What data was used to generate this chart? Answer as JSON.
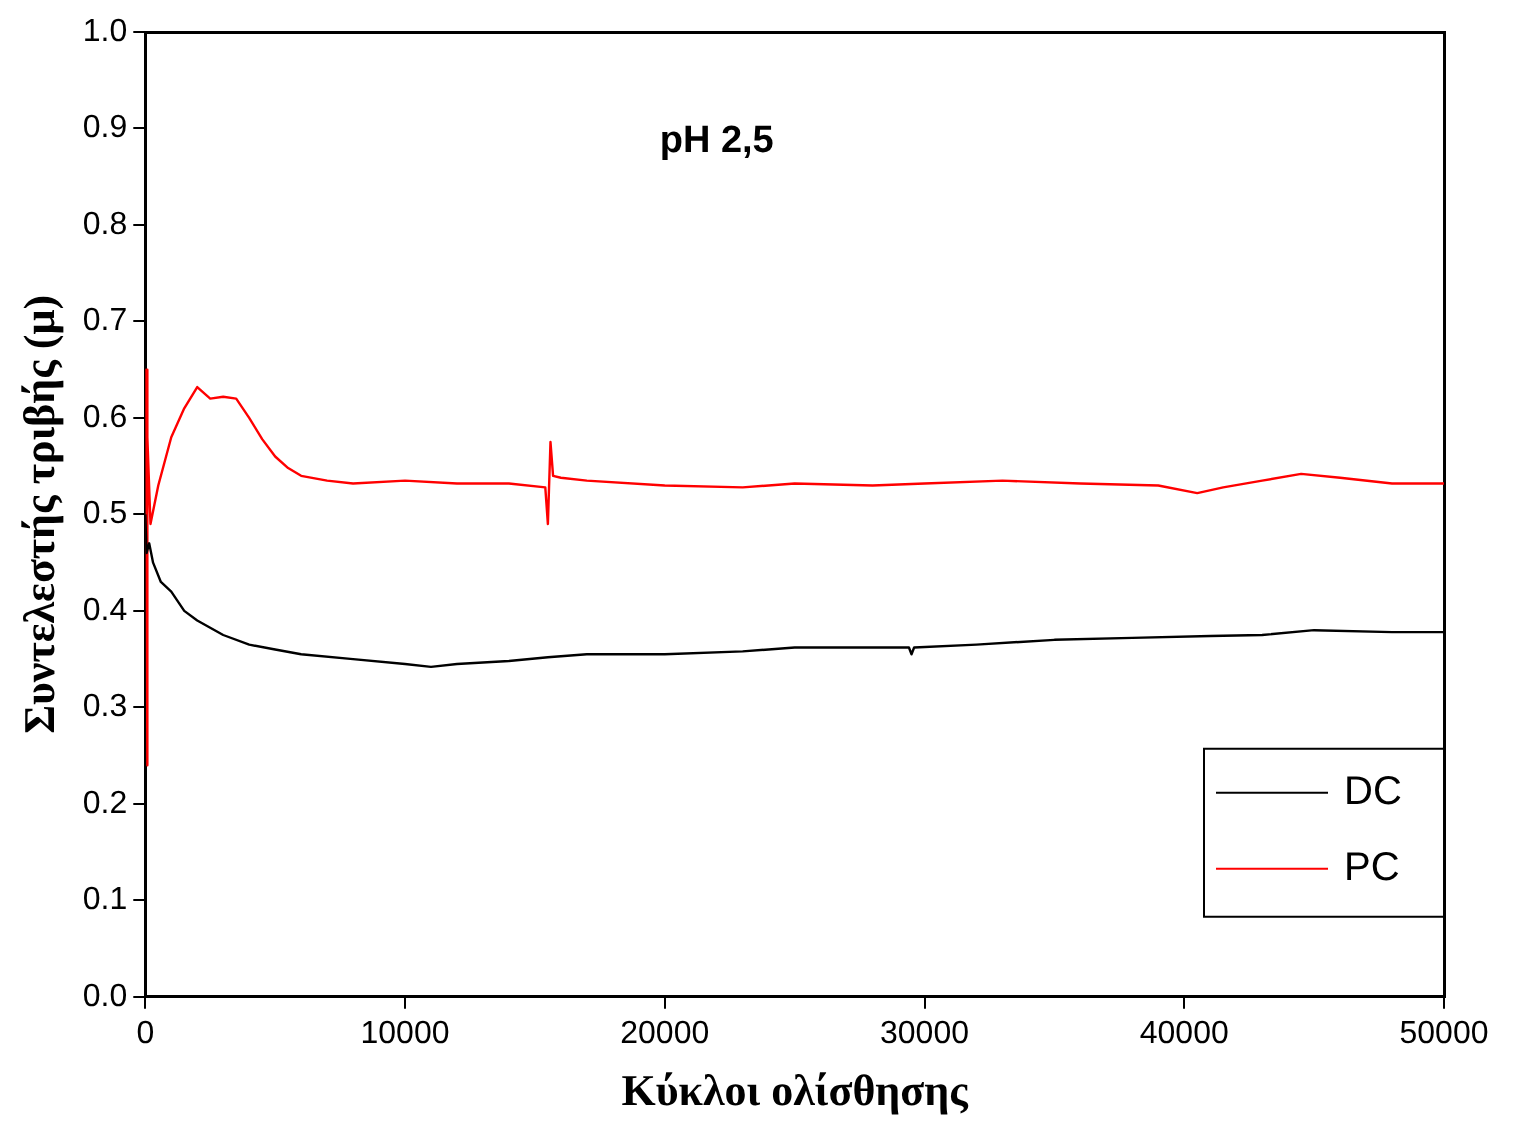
{
  "chart_data": {
    "type": "line",
    "title": "pH 2,5",
    "xlabel": "Κύκλοι ολίσθησης",
    "ylabel": "Συντελεστής τριβής (μ)",
    "xlim": [
      0,
      50000
    ],
    "ylim": [
      0,
      1
    ],
    "xticks": [
      0,
      10000,
      20000,
      30000,
      40000,
      50000
    ],
    "yticks": [
      {
        "value": 0,
        "label": "0.0"
      },
      0.1,
      0.2,
      0.3,
      0.4,
      0.5,
      0.6,
      0.7,
      0.8,
      0.9,
      {
        "value": 1,
        "label": "1.0"
      }
    ],
    "grid": false,
    "legend": "bottom right",
    "marker": "none",
    "line_style": "solid",
    "series": [
      {
        "name": "DC",
        "color": "#000000",
        "x": [
          0,
          50,
          150,
          300,
          600,
          1000,
          1500,
          2000,
          3000,
          4000,
          5000,
          6000,
          8000,
          10000,
          11000,
          12000,
          14000,
          15500,
          17000,
          20000,
          23000,
          25000,
          27000,
          29400,
          29500,
          29600,
          32000,
          35000,
          38000,
          41000,
          43000,
          45000,
          48000,
          50000
        ],
        "values": [
          0.5,
          0.46,
          0.47,
          0.45,
          0.43,
          0.42,
          0.4,
          0.39,
          0.375,
          0.365,
          0.36,
          0.355,
          0.35,
          0.345,
          0.342,
          0.345,
          0.348,
          0.352,
          0.355,
          0.355,
          0.358,
          0.362,
          0.362,
          0.362,
          0.355,
          0.362,
          0.365,
          0.37,
          0.372,
          0.374,
          0.375,
          0.38,
          0.378,
          0.378
        ]
      },
      {
        "name": "PC",
        "color": "#ff0000",
        "x": [
          0,
          30,
          60,
          100,
          200,
          500,
          1000,
          1500,
          2000,
          2500,
          3000,
          3500,
          4000,
          4500,
          5000,
          5500,
          6000,
          7000,
          8000,
          10000,
          12000,
          14000,
          15400,
          15500,
          15600,
          15700,
          16000,
          17000,
          20000,
          23000,
          25000,
          28000,
          30000,
          33000,
          36000,
          39000,
          40500,
          41500,
          43000,
          44500,
          46000,
          48000,
          50000
        ],
        "values": [
          0.62,
          0.65,
          0.24,
          0.58,
          0.49,
          0.53,
          0.58,
          0.61,
          0.632,
          0.62,
          0.622,
          0.62,
          0.6,
          0.578,
          0.56,
          0.548,
          0.54,
          0.535,
          0.532,
          0.535,
          0.532,
          0.532,
          0.528,
          0.49,
          0.575,
          0.54,
          0.538,
          0.535,
          0.53,
          0.528,
          0.532,
          0.53,
          0.532,
          0.535,
          0.532,
          0.53,
          0.522,
          0.528,
          0.535,
          0.542,
          0.538,
          0.532,
          0.532
        ]
      }
    ]
  }
}
